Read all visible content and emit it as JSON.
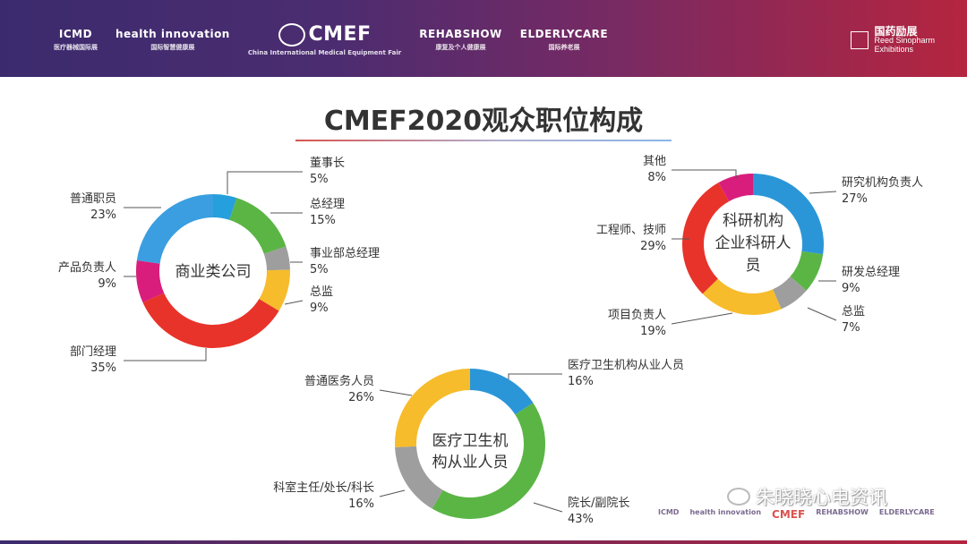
{
  "header": {
    "logos": [
      {
        "main": "ICMD",
        "sub": "医疗器械国际展"
      },
      {
        "main": "health innovation",
        "sub": "国际智慧健康展"
      },
      {
        "main": "CMEF",
        "sub": "China International Medical Equipment Fair"
      },
      {
        "main": "REHABSHOW",
        "sub": "康复及个人健康展"
      },
      {
        "main": "ELDERLYCARE",
        "sub": "国际养老展"
      }
    ],
    "right_logo": {
      "title": "国药励展",
      "sub1": "Reed Sinopharm",
      "sub2": "Exhibitions"
    }
  },
  "slide_title": "CMEF2020观众职位构成",
  "chart_data": [
    {
      "type": "pie",
      "center_label": [
        "商业类公司"
      ],
      "slices": [
        {
          "label": "董事长",
          "value": 5,
          "color": "#25a0dc"
        },
        {
          "label": "总经理",
          "value": 15,
          "color": "#5ab545"
        },
        {
          "label": "事业部总经理",
          "value": 5,
          "color": "#9e9e9e"
        },
        {
          "label": "总监",
          "value": 9,
          "color": "#f6bc2b"
        },
        {
          "label": "部门经理",
          "value": 35,
          "color": "#e8332a"
        },
        {
          "label": "产品负责人",
          "value": 9,
          "color": "#d91d7c"
        },
        {
          "label": "普通职员",
          "value": 23,
          "color": "#3a9ee0"
        }
      ]
    },
    {
      "type": "pie",
      "center_label": [
        "科研机构",
        "企业科研人",
        "员"
      ],
      "slices": [
        {
          "label": "研究机构负责人",
          "value": 27,
          "color": "#2a96d8"
        },
        {
          "label": "研发总经理",
          "value": 9,
          "color": "#5ab545"
        },
        {
          "label": "总监",
          "value": 7,
          "color": "#9e9e9e"
        },
        {
          "label": "项目负责人",
          "value": 19,
          "color": "#f6bc2b"
        },
        {
          "label": "工程师、技师",
          "value": 29,
          "color": "#e8332a"
        },
        {
          "label": "其他",
          "value": 8,
          "color": "#d91d7c"
        }
      ]
    },
    {
      "type": "pie",
      "center_label": [
        "医疗卫生机",
        "构从业人员"
      ],
      "slices": [
        {
          "label": "医疗卫生机构从业人员",
          "value": 16,
          "color": "#2a96d8"
        },
        {
          "label": "院长/副院长",
          "value": 43,
          "color": "#5ab545"
        },
        {
          "label": "科室主任/处长/科长",
          "value": 16,
          "color": "#9e9e9e"
        },
        {
          "label": "普通医务人员",
          "value": 26,
          "color": "#f6bc2b"
        }
      ]
    }
  ],
  "watermark": "朱晓晓心电资讯",
  "footer_logos": [
    "ICMD",
    "health innovation",
    "CMEF",
    "REHABSHOW",
    "ELDERLYCARE"
  ]
}
